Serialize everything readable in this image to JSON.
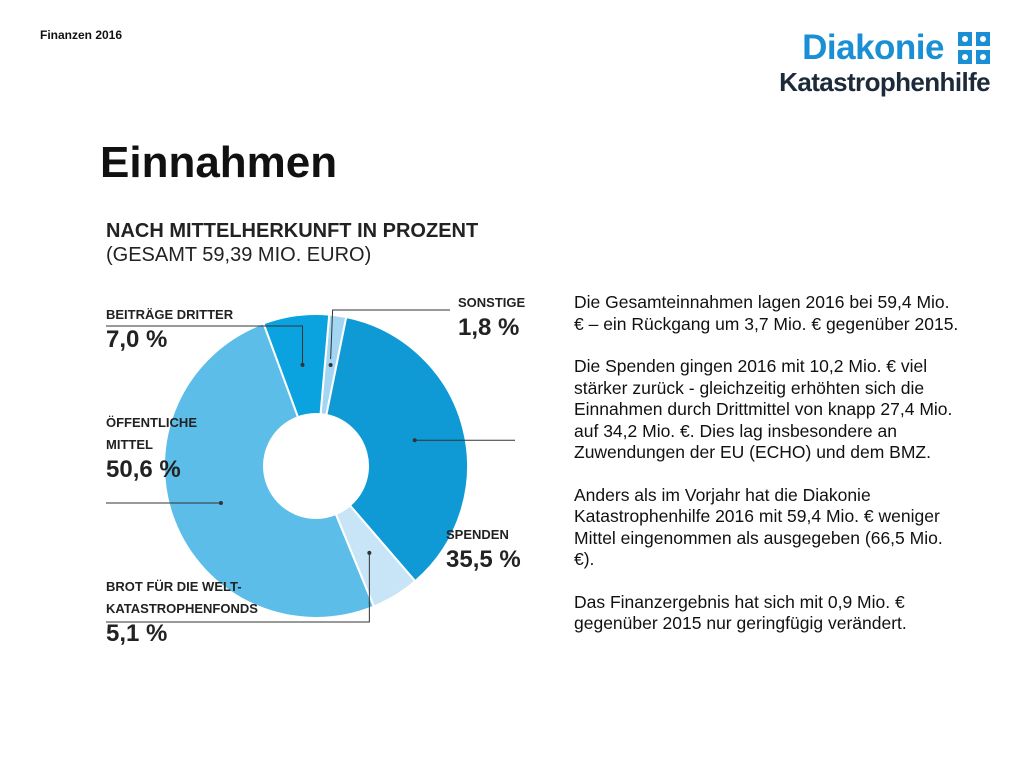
{
  "header": {
    "section_label": "Finanzen 2016",
    "logo_title": "Diakonie",
    "logo_subtitle": "Katastrophenhilfe"
  },
  "page_title": "Einnahmen",
  "chart_heading": "NACH MITTELHERKUNFT IN PROZENT",
  "chart_subheading": "(GESAMT 59,39 MIO. EURO)",
  "colors": {
    "brand_blue": "#1a8fd4",
    "spenden": "#0f9ad6",
    "oeffentliche_mittel": "#5bbde8",
    "beitraege_dritter": "#0aa3e0",
    "brot_fuer_die_welt": "#c7e5f6",
    "sonstige": "#a2d6f2"
  },
  "chart_data": {
    "type": "pie",
    "donut": true,
    "title": "NACH MITTELHERKUNFT IN PROZENT",
    "subtitle": "(GESAMT 59,39 MIO. EURO)",
    "unit": "%",
    "slices": [
      {
        "label": "SONSTIGE",
        "value": 1.8,
        "display": "1,8 %",
        "color": "#a2d6f2"
      },
      {
        "label": "SPENDEN",
        "value": 35.5,
        "display": "35,5 %",
        "color": "#0f9ad6"
      },
      {
        "label": "BROT FÜR DIE WELT-\nKATASTROPHENFONDS",
        "value": 5.1,
        "display": "5,1 %",
        "color": "#c7e5f6"
      },
      {
        "label": "ÖFFENTLICHE\nMITTEL",
        "value": 50.6,
        "display": "50,6 %",
        "color": "#5bbde8"
      },
      {
        "label": "BEITRÄGE DRITTER",
        "value": 7.0,
        "display": "7,0 %",
        "color": "#0aa3e0"
      }
    ]
  },
  "body_paragraphs": [
    "Die Gesamteinnahmen lagen 2016 bei 59,4 Mio. € – ein Rückgang um 3,7 Mio. € gegenüber 2015.",
    "Die Spenden gingen 2016 mit 10,2 Mio. € viel stärker zurück -  gleichzeitig erhöhten sich die Einnahmen durch  Drittmittel von knapp 27,4 Mio. auf 34,2 Mio. €. Dies lag insbesondere an Zuwendungen der EU (ECHO) und dem BMZ.",
    "Anders als im Vorjahr hat die Diakonie Katastrophenhilfe 2016 mit 59,4 Mio. € weniger Mittel eingenommen als ausgegeben (66,5 Mio. €).",
    "Das Finanzergebnis hat sich mit 0,9 Mio. € gegenüber 2015 nur geringfügig verändert."
  ]
}
